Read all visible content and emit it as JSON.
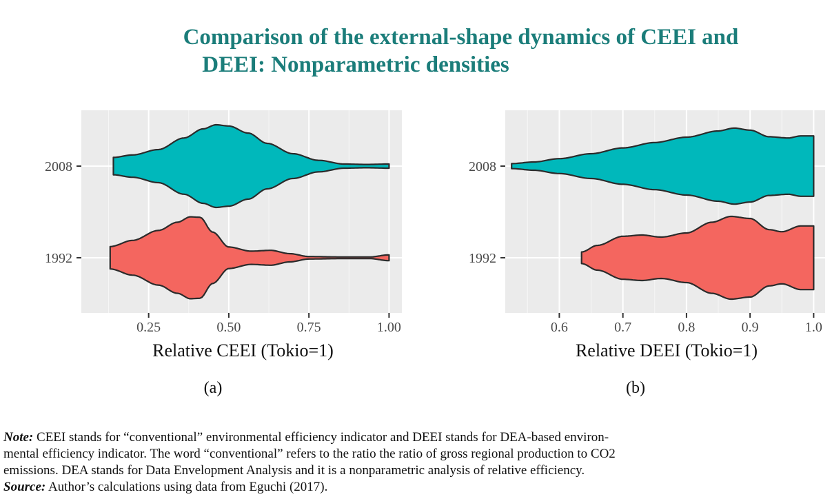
{
  "title": {
    "line1": "Comparison of the external-shape dynamics of CEEI and",
    "line2": "DEEI: Nonparametric densities"
  },
  "colors": {
    "title": "#1b7d7a",
    "series_2008": "#00b8bb",
    "series_1992": "#f4665f",
    "panel_bg": "#ebebeb",
    "outline": "#2b2b2b"
  },
  "chart_data": [
    {
      "type": "violin",
      "panel_label": "(a)",
      "xlabel": "Relative CEEI (Tokio=1)",
      "xlim": [
        0.04,
        1.04
      ],
      "xticks": [
        "0.25",
        "0.50",
        "0.75",
        "1.00"
      ],
      "xtick_values": [
        0.25,
        0.5,
        0.75,
        1.0
      ],
      "categories": [
        "2008",
        "1992"
      ],
      "grid": true,
      "series": [
        {
          "name": "2008",
          "color": "#00b8bb",
          "range": [
            0.14,
            1.0
          ],
          "density": [
            [
              0.14,
              0.21
            ],
            [
              0.2,
              0.27
            ],
            [
              0.28,
              0.4
            ],
            [
              0.36,
              0.68
            ],
            [
              0.42,
              0.9
            ],
            [
              0.46,
              1.0
            ],
            [
              0.5,
              0.97
            ],
            [
              0.56,
              0.8
            ],
            [
              0.62,
              0.55
            ],
            [
              0.7,
              0.3
            ],
            [
              0.78,
              0.14
            ],
            [
              0.86,
              0.05
            ],
            [
              0.93,
              0.04
            ],
            [
              1.0,
              0.05
            ]
          ]
        },
        {
          "name": "1992",
          "color": "#f4665f",
          "range": [
            0.13,
            1.0
          ],
          "density": [
            [
              0.13,
              0.27
            ],
            [
              0.2,
              0.42
            ],
            [
              0.28,
              0.66
            ],
            [
              0.34,
              0.86
            ],
            [
              0.38,
              0.99
            ],
            [
              0.41,
              0.98
            ],
            [
              0.45,
              0.62
            ],
            [
              0.5,
              0.26
            ],
            [
              0.57,
              0.16
            ],
            [
              0.63,
              0.18
            ],
            [
              0.69,
              0.1
            ],
            [
              0.75,
              0.03
            ],
            [
              0.85,
              0.02
            ],
            [
              0.94,
              0.02
            ],
            [
              1.0,
              0.07
            ]
          ]
        }
      ]
    },
    {
      "type": "violin",
      "panel_label": "(b)",
      "xlabel": "Relative DEEI (Tokio=1)",
      "xlim": [
        0.515,
        1.018
      ],
      "xticks": [
        "0.6",
        "0.7",
        "0.8",
        "0.9",
        "1.0"
      ],
      "xtick_values": [
        0.6,
        0.7,
        0.8,
        0.9,
        1.0
      ],
      "categories": [
        "2008",
        "1992"
      ],
      "grid": true,
      "series": [
        {
          "name": "2008",
          "color": "#00b8bb",
          "range": [
            0.525,
            1.0
          ],
          "density": [
            [
              0.525,
              0.06
            ],
            [
              0.56,
              0.1
            ],
            [
              0.6,
              0.18
            ],
            [
              0.65,
              0.3
            ],
            [
              0.7,
              0.44
            ],
            [
              0.75,
              0.57
            ],
            [
              0.8,
              0.7
            ],
            [
              0.85,
              0.85
            ],
            [
              0.875,
              0.92
            ],
            [
              0.9,
              0.87
            ],
            [
              0.93,
              0.71
            ],
            [
              0.96,
              0.68
            ],
            [
              0.98,
              0.73
            ],
            [
              1.0,
              0.73
            ]
          ]
        },
        {
          "name": "1992",
          "color": "#f4665f",
          "range": [
            0.635,
            1.0
          ],
          "density": [
            [
              0.635,
              0.14
            ],
            [
              0.66,
              0.3
            ],
            [
              0.7,
              0.52
            ],
            [
              0.73,
              0.55
            ],
            [
              0.76,
              0.5
            ],
            [
              0.8,
              0.6
            ],
            [
              0.84,
              0.86
            ],
            [
              0.87,
              1.0
            ],
            [
              0.9,
              0.95
            ],
            [
              0.93,
              0.68
            ],
            [
              0.95,
              0.63
            ],
            [
              0.98,
              0.77
            ],
            [
              1.0,
              0.77
            ]
          ]
        }
      ]
    }
  ],
  "notes": {
    "note_label": "Note:",
    "note_line1": "CEEI stands for “conventional” environmental efficiency indicator and DEEI stands for DEA-based environ-",
    "note_line2": "mental efficiency indicator. The word “conventional” refers to the ratio the ratio of gross regional production to CO2",
    "note_line3": "emissions. DEA stands for Data Envelopment Analysis and it is a nonparametric analysis of relative efficiency.",
    "source_label": "Source:",
    "source_text": "Author’s calculations using data from Eguchi (2017)."
  }
}
